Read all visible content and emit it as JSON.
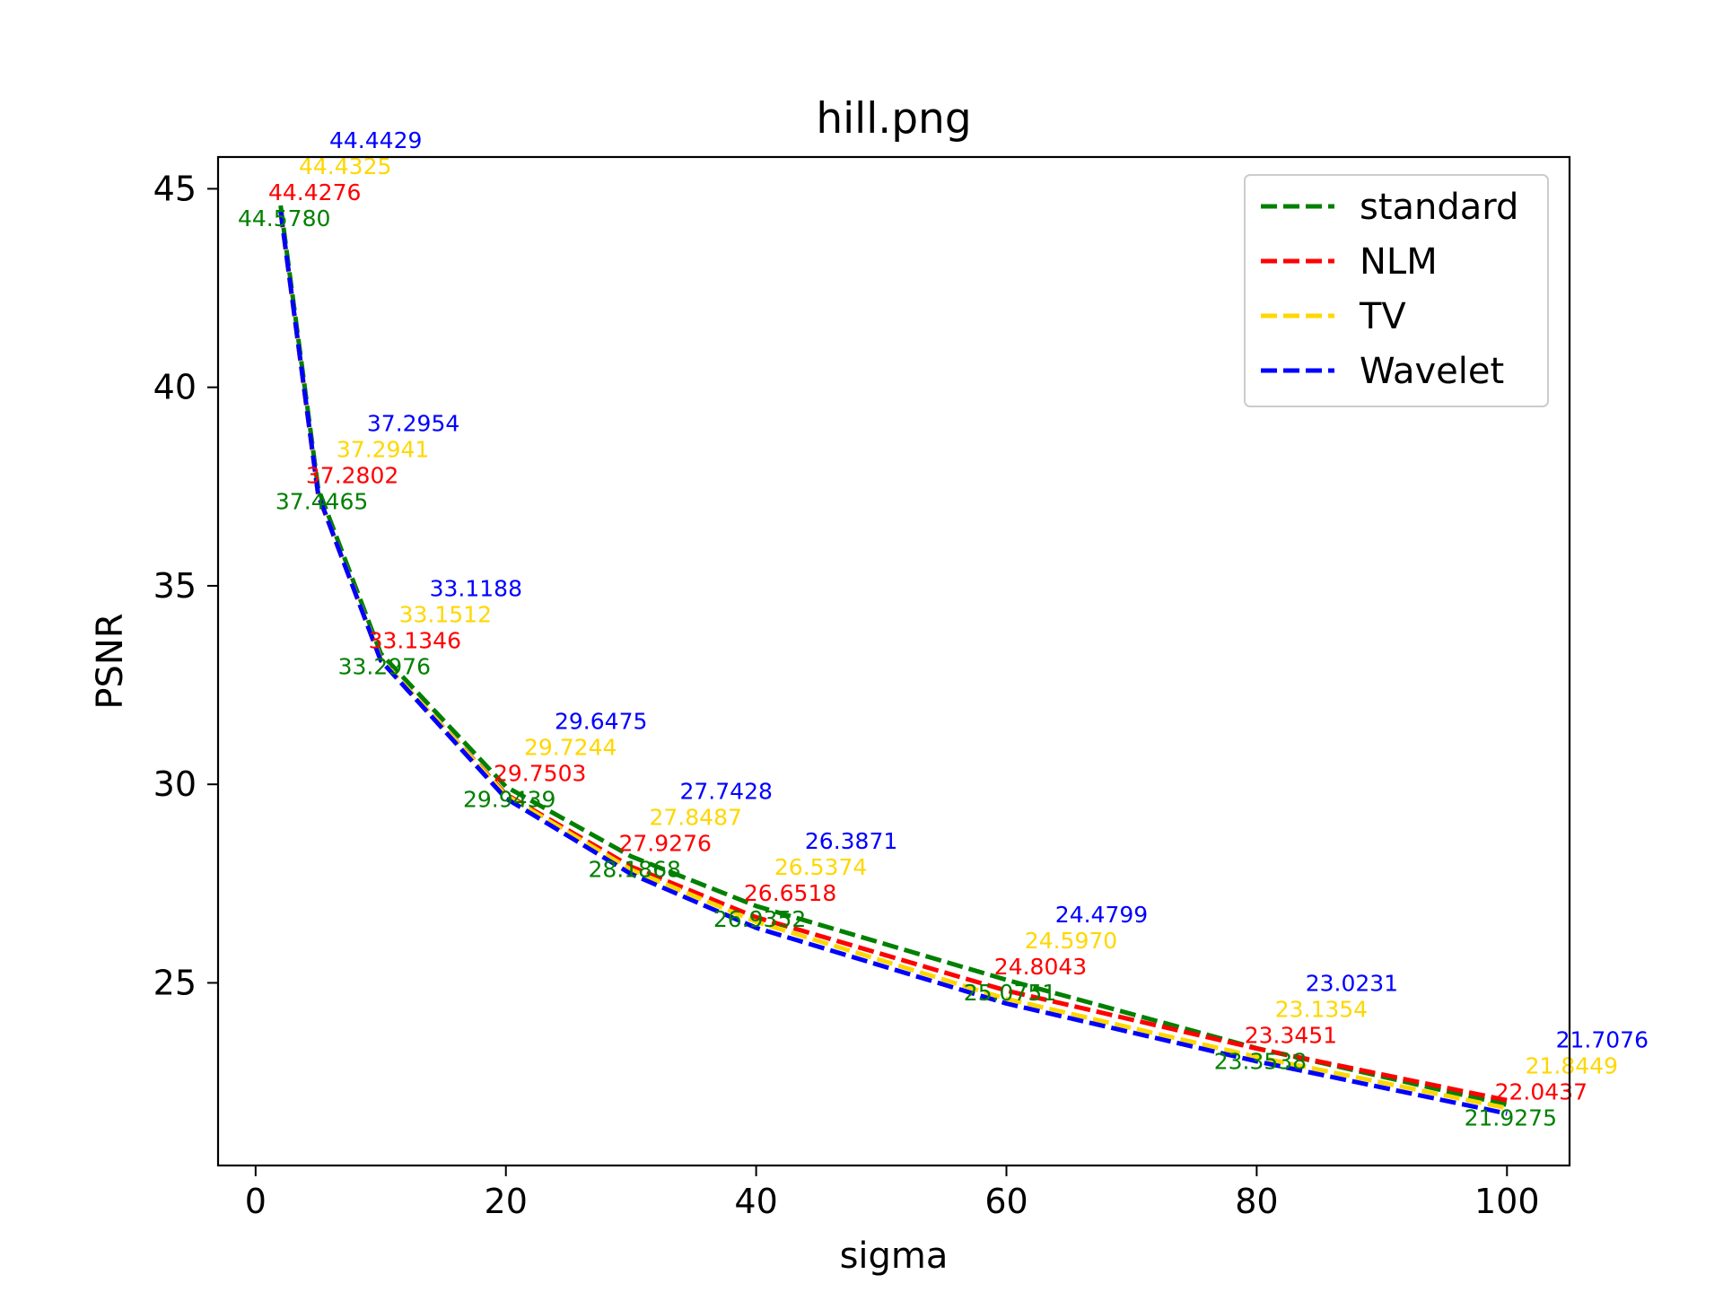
{
  "chart_data": {
    "type": "line",
    "title": "hill.png",
    "xlabel": "sigma",
    "ylabel": "PSNR",
    "x": [
      2,
      5,
      10,
      20,
      30,
      40,
      60,
      80,
      100
    ],
    "xlim": [
      -3,
      105
    ],
    "ylim": [
      20.4,
      45.8
    ],
    "xticks": [
      0,
      20,
      40,
      60,
      80,
      100
    ],
    "yticks": [
      25,
      30,
      35,
      40,
      45
    ],
    "grid": false,
    "legend_position": "top-right",
    "series": [
      {
        "name": "standard",
        "color": "#008000",
        "line_style": "dashed",
        "values": [
          44.578,
          37.4465,
          33.2976,
          29.9439,
          28.1868,
          26.9352,
          25.0751,
          23.3538,
          21.9275
        ],
        "labels": [
          "44.5780",
          "37.4465",
          "33.2976",
          "29.9439",
          "28.1868",
          "26.9352",
          "25.0751",
          "23.3538",
          "21.9275"
        ]
      },
      {
        "name": "NLM",
        "color": "#ff0000",
        "line_style": "dashed",
        "values": [
          44.4276,
          37.2802,
          33.1346,
          29.7503,
          27.9276,
          26.6518,
          24.8043,
          23.3451,
          22.0437
        ],
        "labels": [
          "44.4276",
          "37.2802",
          "33.1346",
          "29.7503",
          "27.9276",
          "26.6518",
          "24.8043",
          "23.3451",
          "22.0437"
        ]
      },
      {
        "name": "TV",
        "color": "#ffd700",
        "line_style": "dashed",
        "values": [
          44.4325,
          37.2941,
          33.1512,
          29.7244,
          27.8487,
          26.5374,
          24.597,
          23.1354,
          21.8449
        ],
        "labels": [
          "44.4325",
          "37.2941",
          "33.1512",
          "29.7244",
          "27.8487",
          "26.5374",
          "24.5970",
          "23.1354",
          "21.8449"
        ]
      },
      {
        "name": "Wavelet",
        "color": "#0000ff",
        "line_style": "dashed",
        "values": [
          44.4429,
          37.2954,
          33.1188,
          29.6475,
          27.7428,
          26.3871,
          24.4799,
          23.0231,
          21.7076
        ],
        "labels": [
          "44.4429",
          "37.2954",
          "33.1188",
          "29.6475",
          "27.7428",
          "26.3871",
          "24.4799",
          "23.0231",
          "21.7076"
        ]
      }
    ]
  }
}
